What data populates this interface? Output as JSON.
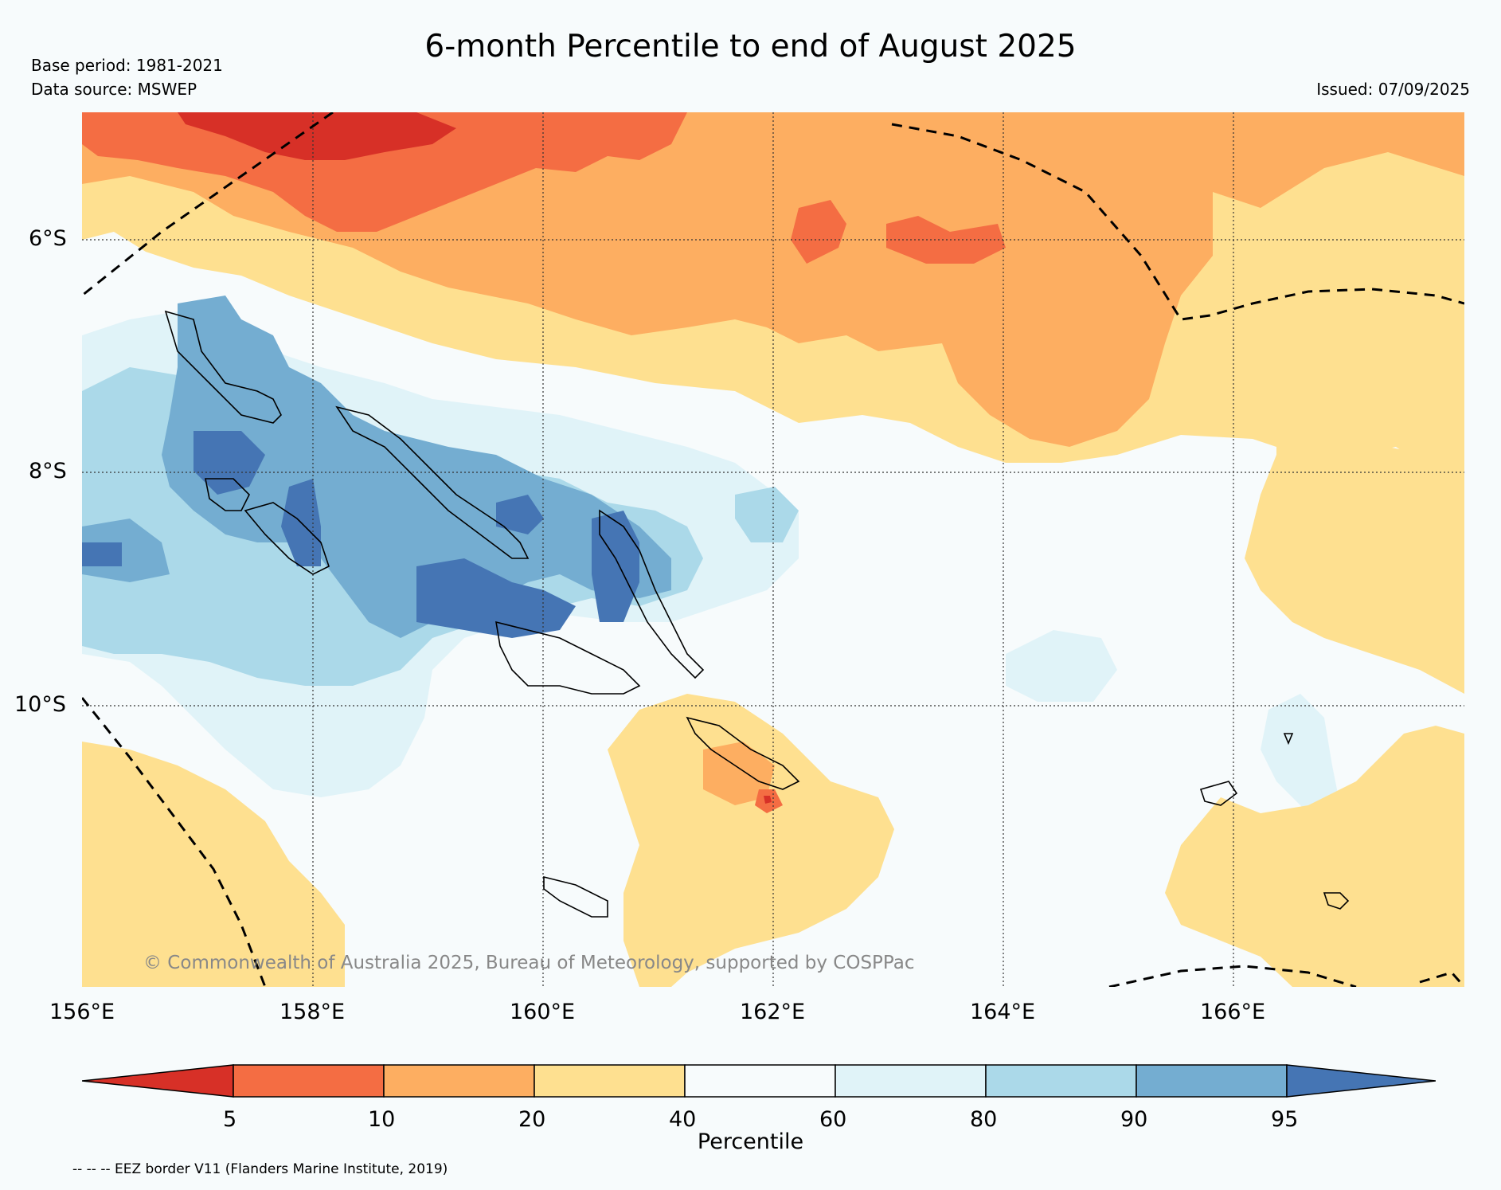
{
  "header": {
    "title": "6-month Percentile to end of August 2025",
    "base_period": "Base period: 1981-2021",
    "data_source": "Data source: MSWEP",
    "issued": "Issued: 07/09/2025"
  },
  "map": {
    "lon_labels": [
      "156°E",
      "158°E",
      "160°E",
      "162°E",
      "164°E",
      "166°E"
    ],
    "lat_labels": [
      "6°S",
      "8°S",
      "10°S"
    ],
    "copyright": "© Commonwealth of Australia 2025, Bureau of Meteorology, supported by COSPPac",
    "extent": {
      "lon": [
        156,
        168
      ],
      "lat": [
        -4.9,
        -12.5
      ]
    }
  },
  "colorbar": {
    "label": "Percentile",
    "ticks": [
      "5",
      "10",
      "20",
      "40",
      "60",
      "80",
      "90",
      "95"
    ],
    "colors": {
      "below_5": "#d73027",
      "p5_10": "#f46d43",
      "p10_20": "#fdae61",
      "p20_40": "#fee090",
      "p40_60": "#f7fbfc",
      "p60_80": "#e0f3f8",
      "p80_90": "#abd9e9",
      "p90_95": "#74add1",
      "above_95": "#4575b4"
    }
  },
  "footnote": "-- -- -- EEZ border V11 (Flanders Marine Institute, 2019)"
}
